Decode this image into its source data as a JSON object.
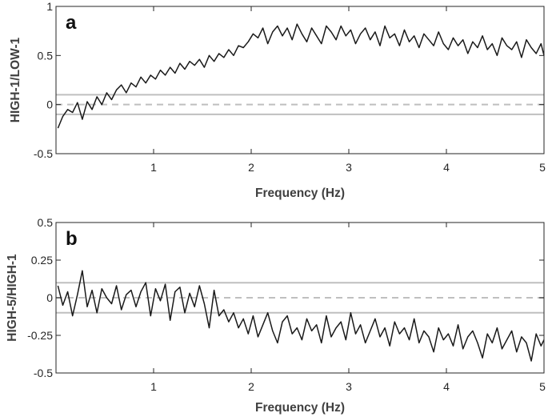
{
  "chart_data": [
    {
      "type": "line",
      "panel_label": "a",
      "xlabel": "Frequency (Hz)",
      "ylabel": "HIGH-1/LOW-1",
      "xlim": [
        0,
        5
      ],
      "ylim": [
        -0.5,
        1
      ],
      "xticks": [
        1,
        2,
        3,
        4,
        5
      ],
      "xtick_labels": [
        "1",
        "2",
        "3",
        "4",
        "5"
      ],
      "yticks": [
        -0.5,
        0,
        0.5,
        1
      ],
      "ytick_labels": [
        "-0.5",
        "0",
        "0.5",
        "1"
      ],
      "grid": false,
      "reference_lines": [
        {
          "y": 0.1,
          "style": "solid",
          "color": "#bfbfbf"
        },
        {
          "y": 0,
          "style": "dashed",
          "color": "#bfbfbf"
        },
        {
          "y": -0.1,
          "style": "solid",
          "color": "#bfbfbf"
        }
      ],
      "series": [
        {
          "color": "#1a1a1a",
          "x": [
            0.02,
            0.07,
            0.12,
            0.17,
            0.22,
            0.27,
            0.32,
            0.37,
            0.42,
            0.47,
            0.52,
            0.57,
            0.62,
            0.67,
            0.72,
            0.77,
            0.82,
            0.87,
            0.92,
            0.97,
            1.02,
            1.07,
            1.12,
            1.17,
            1.22,
            1.27,
            1.32,
            1.37,
            1.42,
            1.47,
            1.52,
            1.57,
            1.62,
            1.67,
            1.72,
            1.77,
            1.82,
            1.87,
            1.92,
            1.97,
            2.02,
            2.07,
            2.12,
            2.17,
            2.22,
            2.27,
            2.32,
            2.37,
            2.42,
            2.47,
            2.52,
            2.57,
            2.62,
            2.67,
            2.72,
            2.77,
            2.82,
            2.87,
            2.92,
            2.97,
            3.02,
            3.07,
            3.12,
            3.17,
            3.22,
            3.27,
            3.32,
            3.37,
            3.42,
            3.47,
            3.52,
            3.57,
            3.62,
            3.67,
            3.72,
            3.77,
            3.82,
            3.87,
            3.92,
            3.97,
            4.02,
            4.07,
            4.12,
            4.17,
            4.22,
            4.27,
            4.32,
            4.37,
            4.42,
            4.47,
            4.52,
            4.57,
            4.62,
            4.67,
            4.72,
            4.77,
            4.82,
            4.87,
            4.92,
            4.97,
            5.0
          ],
          "y": [
            -0.24,
            -0.12,
            -0.05,
            -0.08,
            0.02,
            -0.15,
            0.03,
            -0.05,
            0.08,
            0.0,
            0.12,
            0.05,
            0.15,
            0.2,
            0.12,
            0.22,
            0.18,
            0.28,
            0.22,
            0.3,
            0.26,
            0.35,
            0.3,
            0.38,
            0.32,
            0.42,
            0.36,
            0.44,
            0.4,
            0.46,
            0.38,
            0.5,
            0.44,
            0.52,
            0.48,
            0.56,
            0.5,
            0.6,
            0.58,
            0.64,
            0.72,
            0.68,
            0.78,
            0.62,
            0.74,
            0.8,
            0.7,
            0.78,
            0.66,
            0.82,
            0.72,
            0.64,
            0.78,
            0.7,
            0.62,
            0.8,
            0.74,
            0.66,
            0.8,
            0.7,
            0.76,
            0.62,
            0.72,
            0.78,
            0.66,
            0.74,
            0.6,
            0.8,
            0.68,
            0.72,
            0.6,
            0.76,
            0.64,
            0.7,
            0.58,
            0.72,
            0.66,
            0.6,
            0.74,
            0.62,
            0.56,
            0.68,
            0.6,
            0.66,
            0.52,
            0.64,
            0.58,
            0.7,
            0.56,
            0.62,
            0.5,
            0.68,
            0.6,
            0.56,
            0.64,
            0.48,
            0.66,
            0.58,
            0.52,
            0.62,
            0.5
          ]
        }
      ]
    },
    {
      "type": "line",
      "panel_label": "b",
      "xlabel": "Frequency (Hz)",
      "ylabel": "HIGH-5/HIGH-1",
      "xlim": [
        0,
        5
      ],
      "ylim": [
        -0.5,
        0.5
      ],
      "xticks": [
        1,
        2,
        3,
        4,
        5
      ],
      "xtick_labels": [
        "1",
        "2",
        "3",
        "4",
        "5"
      ],
      "yticks": [
        -0.5,
        -0.25,
        0,
        0.25,
        0.5
      ],
      "ytick_labels": [
        "-0.5",
        "-0.25",
        "0",
        "0.25",
        "0.5"
      ],
      "grid": false,
      "reference_lines": [
        {
          "y": 0.1,
          "style": "solid",
          "color": "#bfbfbf"
        },
        {
          "y": 0,
          "style": "dashed",
          "color": "#bfbfbf"
        },
        {
          "y": -0.1,
          "style": "solid",
          "color": "#bfbfbf"
        }
      ],
      "series": [
        {
          "color": "#1a1a1a",
          "x": [
            0.02,
            0.07,
            0.12,
            0.17,
            0.22,
            0.27,
            0.32,
            0.37,
            0.42,
            0.47,
            0.52,
            0.57,
            0.62,
            0.67,
            0.72,
            0.77,
            0.82,
            0.87,
            0.92,
            0.97,
            1.02,
            1.07,
            1.12,
            1.17,
            1.22,
            1.27,
            1.32,
            1.37,
            1.42,
            1.47,
            1.52,
            1.57,
            1.62,
            1.67,
            1.72,
            1.77,
            1.82,
            1.87,
            1.92,
            1.97,
            2.02,
            2.07,
            2.12,
            2.17,
            2.22,
            2.27,
            2.32,
            2.37,
            2.42,
            2.47,
            2.52,
            2.57,
            2.62,
            2.67,
            2.72,
            2.77,
            2.82,
            2.87,
            2.92,
            2.97,
            3.02,
            3.07,
            3.12,
            3.17,
            3.22,
            3.27,
            3.32,
            3.37,
            3.42,
            3.47,
            3.52,
            3.57,
            3.62,
            3.67,
            3.72,
            3.77,
            3.82,
            3.87,
            3.92,
            3.97,
            4.02,
            4.07,
            4.12,
            4.17,
            4.22,
            4.27,
            4.32,
            4.37,
            4.42,
            4.47,
            4.52,
            4.57,
            4.62,
            4.67,
            4.72,
            4.77,
            4.82,
            4.87,
            4.92,
            4.97,
            5.0
          ],
          "y": [
            0.08,
            -0.05,
            0.04,
            -0.12,
            0.02,
            0.18,
            -0.06,
            0.05,
            -0.1,
            0.06,
            0.0,
            -0.04,
            0.08,
            -0.08,
            0.02,
            0.05,
            -0.06,
            0.04,
            0.1,
            -0.12,
            0.06,
            -0.02,
            0.09,
            -0.15,
            0.04,
            0.07,
            -0.1,
            0.03,
            -0.06,
            0.08,
            -0.04,
            -0.2,
            0.05,
            -0.12,
            -0.08,
            -0.16,
            -0.1,
            -0.2,
            -0.14,
            -0.24,
            -0.12,
            -0.26,
            -0.18,
            -0.1,
            -0.22,
            -0.3,
            -0.16,
            -0.12,
            -0.24,
            -0.2,
            -0.28,
            -0.14,
            -0.22,
            -0.18,
            -0.3,
            -0.12,
            -0.26,
            -0.2,
            -0.16,
            -0.28,
            -0.1,
            -0.24,
            -0.18,
            -0.3,
            -0.22,
            -0.14,
            -0.26,
            -0.2,
            -0.32,
            -0.16,
            -0.24,
            -0.2,
            -0.28,
            -0.14,
            -0.3,
            -0.22,
            -0.26,
            -0.36,
            -0.2,
            -0.28,
            -0.24,
            -0.32,
            -0.18,
            -0.34,
            -0.26,
            -0.22,
            -0.3,
            -0.4,
            -0.24,
            -0.3,
            -0.2,
            -0.34,
            -0.28,
            -0.22,
            -0.36,
            -0.26,
            -0.3,
            -0.42,
            -0.24,
            -0.32,
            -0.28
          ]
        }
      ]
    }
  ]
}
